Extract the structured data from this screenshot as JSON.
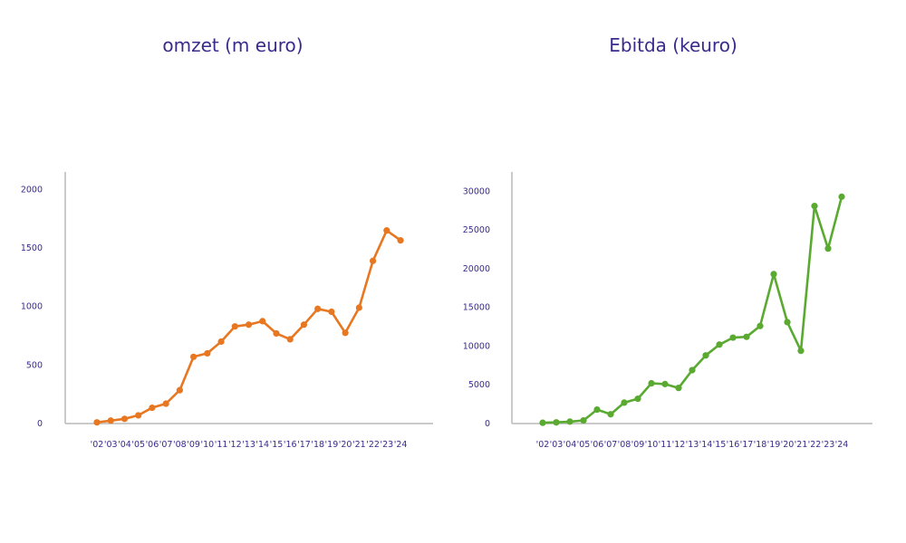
{
  "chart_data": [
    {
      "type": "line",
      "title": "omzet (m euro)",
      "xlabel": "",
      "ylabel": "",
      "color": "#e87722",
      "ylim": [
        0,
        2150
      ],
      "yticks": [
        0,
        500,
        1000,
        1500,
        2000
      ],
      "categories": [
        "'02",
        "'03",
        "'04",
        "'05",
        "'06",
        "'07",
        "'08",
        "'09",
        "'10",
        "'11",
        "'12",
        "'13",
        "'14",
        "'15",
        "'16",
        "'17",
        "'18",
        "'19",
        "'20",
        "'21",
        "'22",
        "'23",
        "'24"
      ],
      "values": [
        10,
        25,
        40,
        70,
        135,
        170,
        285,
        570,
        600,
        700,
        830,
        845,
        875,
        770,
        720,
        845,
        980,
        955,
        775,
        990,
        1390,
        1650,
        1565
      ],
      "grid": false
    },
    {
      "type": "line",
      "title": "Ebitda (keuro)",
      "xlabel": "",
      "ylabel": "",
      "color": "#5aaa32",
      "ylim": [
        0,
        32500
      ],
      "yticks": [
        0,
        5000,
        10000,
        15000,
        20000,
        25000,
        30000
      ],
      "categories": [
        "'02",
        "'03",
        "'04",
        "'05",
        "'06",
        "'07",
        "'08",
        "'09",
        "'10",
        "'11",
        "'12",
        "'13",
        "'14",
        "'15",
        "'16",
        "'17",
        "'18",
        "'19",
        "'20",
        "'21",
        "'22",
        "'23",
        "'24"
      ],
      "values": [
        100,
        150,
        250,
        400,
        1800,
        1200,
        2700,
        3200,
        5200,
        5100,
        4600,
        6900,
        8800,
        10200,
        11100,
        11200,
        12600,
        19300,
        13100,
        9400,
        28100,
        22600,
        29300
      ],
      "grid": false
    }
  ]
}
